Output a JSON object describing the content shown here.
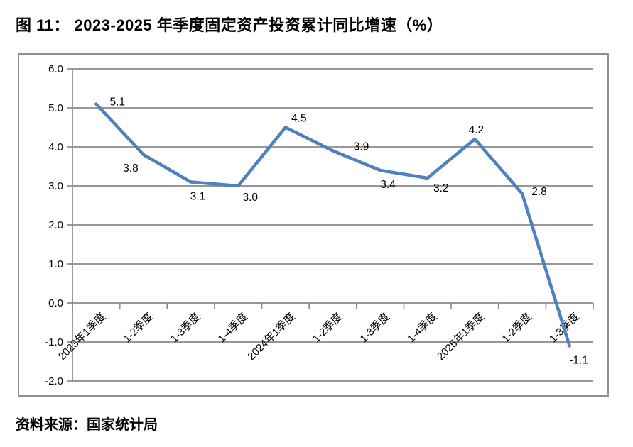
{
  "page": {
    "figure_title": "图 11： 2023-2025 年季度固定资产投资累计同比增速（%）",
    "source_note": "资料来源：国家统计局"
  },
  "chart_data": {
    "type": "line",
    "title": "图 11： 2023-2025 年季度固定资产投资累计同比增速（%）",
    "categories": [
      "2023年1季度",
      "1-2季度",
      "1-3季度",
      "1-4季度",
      "2024年1季度",
      "1-2季度",
      "1-3季度",
      "1-4季度",
      "2025年1季度",
      "1-2季度",
      "1-3季度"
    ],
    "values": [
      5.1,
      3.8,
      3.1,
      3.0,
      4.5,
      3.9,
      3.4,
      3.2,
      4.2,
      2.8,
      -1.1
    ],
    "xlabel": "",
    "ylabel": "",
    "ylim": [
      -2.0,
      6.0
    ],
    "ytick_step": 1.0,
    "ytick_labels": [
      "6.0",
      "5.0",
      "4.0",
      "3.0",
      "2.0",
      "1.0",
      "0.0",
      "-1.0",
      "-2.0"
    ],
    "grid": true,
    "legend": false,
    "data_labels_shown": true,
    "line_color": "#4F81BD",
    "grid_color": "#8A8A8A",
    "text_color": "#000000",
    "source": "资料来源：国家统计局"
  }
}
